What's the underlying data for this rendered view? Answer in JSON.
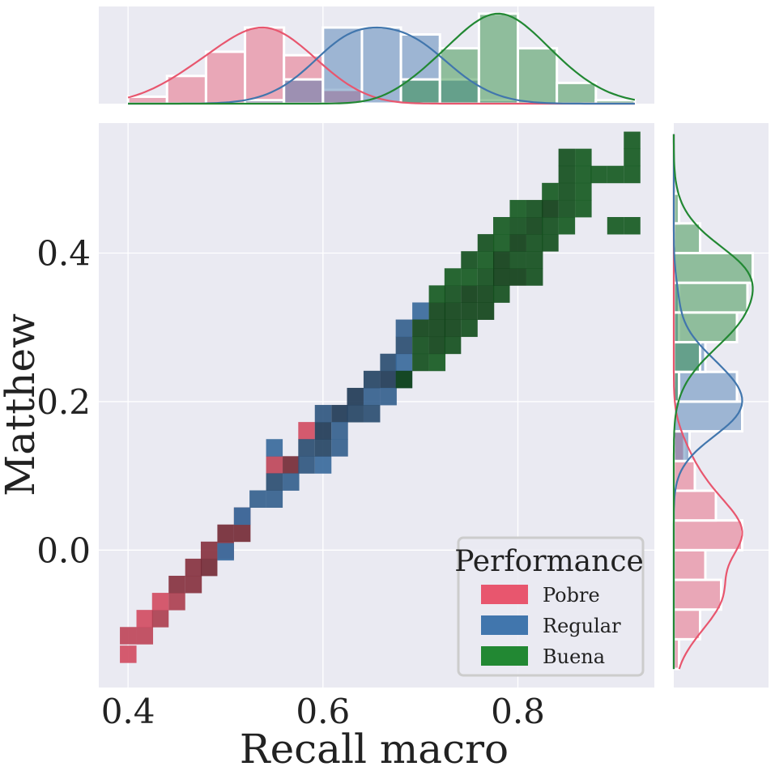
{
  "chart_data": {
    "type": "heatmap",
    "xlabel": "Recall macro",
    "ylabel": "Matthew",
    "xlim": [
      0.37,
      0.94
    ],
    "ylim": [
      -0.185,
      0.575
    ],
    "xticks": [
      0.4,
      0.6,
      0.8
    ],
    "xtick_labels": [
      "0.4",
      "0.6",
      "0.8"
    ],
    "yticks": [
      0.0,
      0.2,
      0.4
    ],
    "ytick_labels": [
      "0.0",
      "0.2",
      "0.4"
    ],
    "grid": true,
    "legend": {
      "title": "Performance",
      "position": "lower-right",
      "entries": [
        "Pobre",
        "Regular",
        "Buena"
      ]
    },
    "bin_width_x": 0.0167,
    "bin_height_y": 0.023,
    "series": [
      {
        "name": "Pobre",
        "color": "#e8566e",
        "cells": [
          [
            0.4,
            -0.14,
            0.4
          ],
          [
            0.4,
            -0.115,
            0.5
          ],
          [
            0.417,
            -0.115,
            0.5
          ],
          [
            0.417,
            -0.092,
            0.4
          ],
          [
            0.433,
            -0.092,
            0.6
          ],
          [
            0.433,
            -0.069,
            0.4
          ],
          [
            0.45,
            -0.069,
            0.6
          ],
          [
            0.45,
            -0.046,
            0.8
          ],
          [
            0.467,
            -0.046,
            0.8
          ],
          [
            0.467,
            -0.023,
            0.8
          ],
          [
            0.483,
            -0.023,
            0.9
          ],
          [
            0.483,
            0.0,
            0.8
          ],
          [
            0.5,
            0.0,
            0.8
          ],
          [
            0.5,
            0.023,
            0.9
          ],
          [
            0.517,
            0.023,
            0.9
          ],
          [
            0.517,
            0.046,
            0.9
          ],
          [
            0.55,
            0.115,
            0.5
          ],
          [
            0.567,
            0.115,
            0.9
          ],
          [
            0.583,
            0.161,
            0.4
          ]
        ]
      },
      {
        "name": "Regular",
        "color": "#4176ad",
        "cells": [
          [
            0.5,
            -0.002,
            0.35
          ],
          [
            0.517,
            0.046,
            0.35
          ],
          [
            0.533,
            0.069,
            0.5
          ],
          [
            0.55,
            0.069,
            0.5
          ],
          [
            0.55,
            0.092,
            0.7
          ],
          [
            0.567,
            0.092,
            0.5
          ],
          [
            0.583,
            0.115,
            0.6
          ],
          [
            0.6,
            0.115,
            0.4
          ],
          [
            0.583,
            0.138,
            0.7
          ],
          [
            0.55,
            0.138,
            0.4
          ],
          [
            0.6,
            0.138,
            0.8
          ],
          [
            0.617,
            0.138,
            0.5
          ],
          [
            0.6,
            0.161,
            0.9
          ],
          [
            0.617,
            0.184,
            0.9
          ],
          [
            0.633,
            0.184,
            0.8
          ],
          [
            0.617,
            0.161,
            0.5
          ],
          [
            0.6,
            0.184,
            0.6
          ],
          [
            0.633,
            0.207,
            0.9
          ],
          [
            0.65,
            0.207,
            0.5
          ],
          [
            0.65,
            0.184,
            0.7
          ],
          [
            0.667,
            0.23,
            0.9
          ],
          [
            0.65,
            0.23,
            0.8
          ],
          [
            0.667,
            0.253,
            0.7
          ],
          [
            0.683,
            0.253,
            0.4
          ],
          [
            0.683,
            0.276,
            0.7
          ],
          [
            0.683,
            0.299,
            0.5
          ],
          [
            0.7,
            0.322,
            0.4
          ],
          [
            0.667,
            0.207,
            0.5
          ],
          [
            0.683,
            0.23,
            0.4
          ]
        ]
      },
      {
        "name": "Buena",
        "color": "#228833",
        "cells": [
          [
            0.683,
            0.23,
            0.9
          ],
          [
            0.7,
            0.253,
            0.8
          ],
          [
            0.717,
            0.253,
            0.7
          ],
          [
            0.7,
            0.276,
            0.8
          ],
          [
            0.717,
            0.276,
            0.9
          ],
          [
            0.733,
            0.276,
            0.8
          ],
          [
            0.7,
            0.299,
            0.9
          ],
          [
            0.717,
            0.299,
            0.9
          ],
          [
            0.733,
            0.299,
            0.9
          ],
          [
            0.75,
            0.299,
            0.8
          ],
          [
            0.717,
            0.322,
            0.9
          ],
          [
            0.733,
            0.322,
            0.9
          ],
          [
            0.75,
            0.322,
            0.9
          ],
          [
            0.767,
            0.322,
            0.9
          ],
          [
            0.717,
            0.345,
            0.7
          ],
          [
            0.733,
            0.345,
            0.8
          ],
          [
            0.75,
            0.345,
            0.95
          ],
          [
            0.767,
            0.345,
            0.9
          ],
          [
            0.783,
            0.345,
            0.8
          ],
          [
            0.733,
            0.368,
            0.7
          ],
          [
            0.75,
            0.368,
            0.7
          ],
          [
            0.767,
            0.368,
            0.8
          ],
          [
            0.783,
            0.368,
            0.95
          ],
          [
            0.8,
            0.368,
            0.95
          ],
          [
            0.817,
            0.368,
            0.8
          ],
          [
            0.75,
            0.391,
            0.8
          ],
          [
            0.767,
            0.391,
            0.7
          ],
          [
            0.783,
            0.391,
            0.95
          ],
          [
            0.8,
            0.391,
            0.8
          ],
          [
            0.817,
            0.391,
            0.8
          ],
          [
            0.767,
            0.414,
            0.8
          ],
          [
            0.783,
            0.414,
            0.7
          ],
          [
            0.8,
            0.414,
            0.95
          ],
          [
            0.817,
            0.414,
            0.8
          ],
          [
            0.833,
            0.414,
            0.8
          ],
          [
            0.783,
            0.437,
            0.7
          ],
          [
            0.8,
            0.437,
            0.8
          ],
          [
            0.817,
            0.437,
            0.9
          ],
          [
            0.833,
            0.437,
            0.8
          ],
          [
            0.85,
            0.437,
            0.7
          ],
          [
            0.8,
            0.46,
            0.7
          ],
          [
            0.817,
            0.46,
            0.8
          ],
          [
            0.833,
            0.46,
            0.95
          ],
          [
            0.85,
            0.46,
            0.8
          ],
          [
            0.867,
            0.46,
            0.7
          ],
          [
            0.9,
            0.437,
            0.7
          ],
          [
            0.917,
            0.437,
            0.7
          ],
          [
            0.833,
            0.483,
            0.7
          ],
          [
            0.85,
            0.483,
            0.8
          ],
          [
            0.867,
            0.483,
            0.7
          ],
          [
            0.85,
            0.506,
            0.8
          ],
          [
            0.867,
            0.506,
            0.7
          ],
          [
            0.883,
            0.506,
            0.7
          ],
          [
            0.9,
            0.506,
            0.7
          ],
          [
            0.917,
            0.506,
            0.7
          ],
          [
            0.85,
            0.529,
            0.8
          ],
          [
            0.867,
            0.529,
            0.7
          ],
          [
            0.917,
            0.529,
            0.7
          ],
          [
            0.917,
            0.552,
            0.7
          ]
        ]
      }
    ],
    "marginal_x": {
      "bin_edges": [
        0.4,
        0.44,
        0.48,
        0.52,
        0.56,
        0.6,
        0.64,
        0.68,
        0.72,
        0.76,
        0.8,
        0.84,
        0.88,
        0.92
      ],
      "series": [
        {
          "name": "Pobre",
          "counts": [
            2,
            8,
            15,
            22,
            14,
            4,
            0,
            0,
            0,
            0,
            0,
            0,
            0
          ]
        },
        {
          "name": "Regular",
          "counts": [
            0,
            0,
            0,
            1,
            7,
            22,
            22,
            20,
            7,
            1,
            0,
            0,
            0
          ]
        },
        {
          "name": "Buena",
          "counts": [
            0,
            0,
            0,
            0,
            0,
            0,
            0,
            7,
            16,
            26,
            16,
            6,
            1
          ]
        }
      ]
    },
    "marginal_y": {
      "bin_edges": [
        -0.16,
        -0.12,
        -0.08,
        -0.04,
        0.0,
        0.04,
        0.08,
        0.12,
        0.16,
        0.2,
        0.24,
        0.28,
        0.32,
        0.36,
        0.4,
        0.44,
        0.48,
        0.52,
        0.56
      ],
      "series": [
        {
          "name": "Pobre",
          "counts": [
            1,
            5,
            9,
            6,
            13,
            8,
            4,
            2,
            0,
            0,
            0,
            0,
            0,
            0,
            0,
            0,
            0,
            0
          ]
        },
        {
          "name": "Regular",
          "counts": [
            0,
            0,
            0,
            0,
            0,
            0,
            0,
            3,
            13,
            12,
            6,
            1,
            1,
            0,
            0,
            0,
            0,
            0
          ]
        },
        {
          "name": "Buena",
          "counts": [
            0,
            0,
            0,
            0,
            0,
            0,
            0,
            0,
            0,
            1,
            5,
            12,
            14,
            15,
            5,
            1,
            0,
            0
          ]
        }
      ]
    }
  }
}
